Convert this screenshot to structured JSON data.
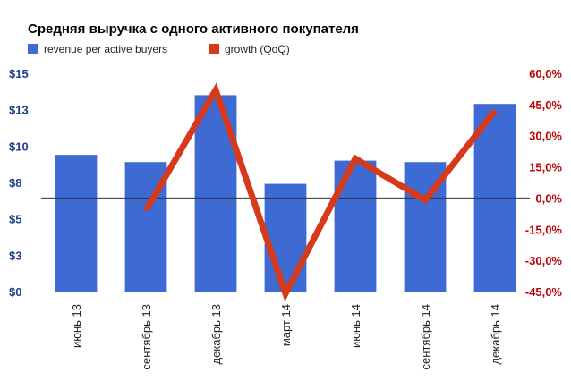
{
  "chart_data": {
    "type": "bar+line",
    "title": "Средняя выручка с одного активного покупателя",
    "categories": [
      "июнь 13",
      "сентябрь 13",
      "декабрь 13",
      "март 14",
      "июнь 14",
      "сентябрь 14",
      "декабрь 14"
    ],
    "series": [
      {
        "name": "revenue per active buyers",
        "type": "bar",
        "axis": "left",
        "color": "#3d6bd3",
        "values": [
          9.4,
          8.9,
          13.5,
          7.4,
          9.0,
          8.9,
          12.9
        ]
      },
      {
        "name": "growth (QoQ)",
        "type": "line",
        "axis": "right",
        "color": "#d63a1a",
        "values": [
          null,
          -6.0,
          52.0,
          -46.0,
          19.0,
          -1.0,
          42.0
        ]
      }
    ],
    "y_left": {
      "min": 0,
      "max": 15,
      "ticks": [
        0,
        2.5,
        5,
        7.5,
        10,
        12.5,
        15
      ],
      "tick_labels": [
        "$0",
        "$3",
        "$5",
        "$8",
        "$10",
        "$13",
        "$15"
      ],
      "color": "#1f3f8f"
    },
    "y_right": {
      "min": -45,
      "max": 60,
      "ticks": [
        -45,
        -30,
        -15,
        0,
        15,
        30,
        45,
        60
      ],
      "tick_labels": [
        "-45,0%",
        "-30,0%",
        "-15,0%",
        "0,0%",
        "15,0%",
        "30,0%",
        "45,0%",
        "60,0%"
      ],
      "color": "#c00000"
    },
    "legend_position": "top-left",
    "grid": false,
    "zero_line": true
  }
}
